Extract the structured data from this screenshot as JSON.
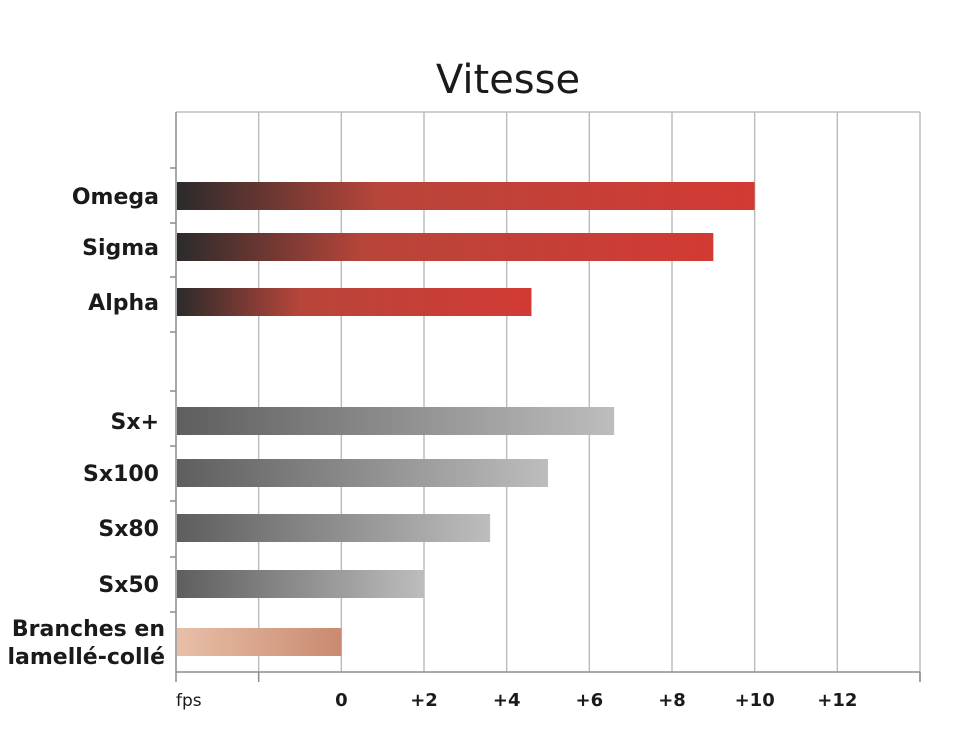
{
  "chart_data": {
    "type": "bar",
    "orientation": "horizontal",
    "title": "Vitesse",
    "unit_label": "fps",
    "xlim": [
      -4,
      14
    ],
    "x_ticks": [
      {
        "value": 0,
        "label": "0"
      },
      {
        "value": 2,
        "label": "+2"
      },
      {
        "value": 4,
        "label": "+4"
      },
      {
        "value": 6,
        "label": "+6"
      },
      {
        "value": 8,
        "label": "+8"
      },
      {
        "value": 10,
        "label": "+10"
      },
      {
        "value": 12,
        "label": "+12"
      }
    ],
    "grid": true,
    "bars": [
      {
        "label": "Omega",
        "value": 10,
        "style": "red"
      },
      {
        "label": "Sigma",
        "value": 9,
        "style": "red"
      },
      {
        "label": "Alpha",
        "value": 4.6,
        "style": "red"
      },
      {
        "label": "Sx+",
        "value": 6.6,
        "style": "grey"
      },
      {
        "label": "Sx100",
        "value": 5.0,
        "style": "grey"
      },
      {
        "label": "Sx80",
        "value": 3.6,
        "style": "grey"
      },
      {
        "label": "Sx50",
        "value": 2.0,
        "style": "grey"
      },
      {
        "label": [
          "Branches en",
          "lamellé-collé"
        ],
        "value": 0,
        "style": "tan"
      }
    ],
    "colors": {
      "red_start": "#2b2b2b",
      "red_mid": "#b8453a",
      "red_end": "#d23a34",
      "grey_start": "#5e5e5e",
      "grey_end": "#bdbdbd",
      "tan_start": "#e8bfa8",
      "tan_end": "#c98a70",
      "grid": "#bdbdbd",
      "axis": "#8c8c8c"
    }
  }
}
